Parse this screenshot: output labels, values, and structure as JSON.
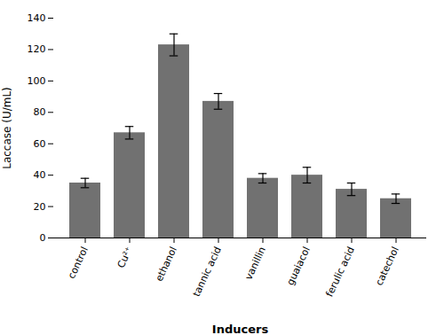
{
  "chart_data": {
    "type": "bar",
    "categories": [
      "control",
      "Cu²⁺",
      "ethanol",
      "tannic acid",
      "vanillin",
      "guaiacol",
      "ferulic acid",
      "catechol"
    ],
    "values": [
      35,
      67,
      123,
      87,
      38,
      40,
      31,
      25
    ],
    "errors": [
      3,
      4,
      7,
      5,
      3,
      5,
      4,
      3
    ],
    "color": "#717171",
    "ylabel": "Laccase (U/mL)",
    "xlabel": "Inducers",
    "ylim": [
      0,
      140
    ],
    "yticks": [
      0,
      20,
      40,
      60,
      80,
      100,
      120,
      140
    ],
    "grid": false
  }
}
